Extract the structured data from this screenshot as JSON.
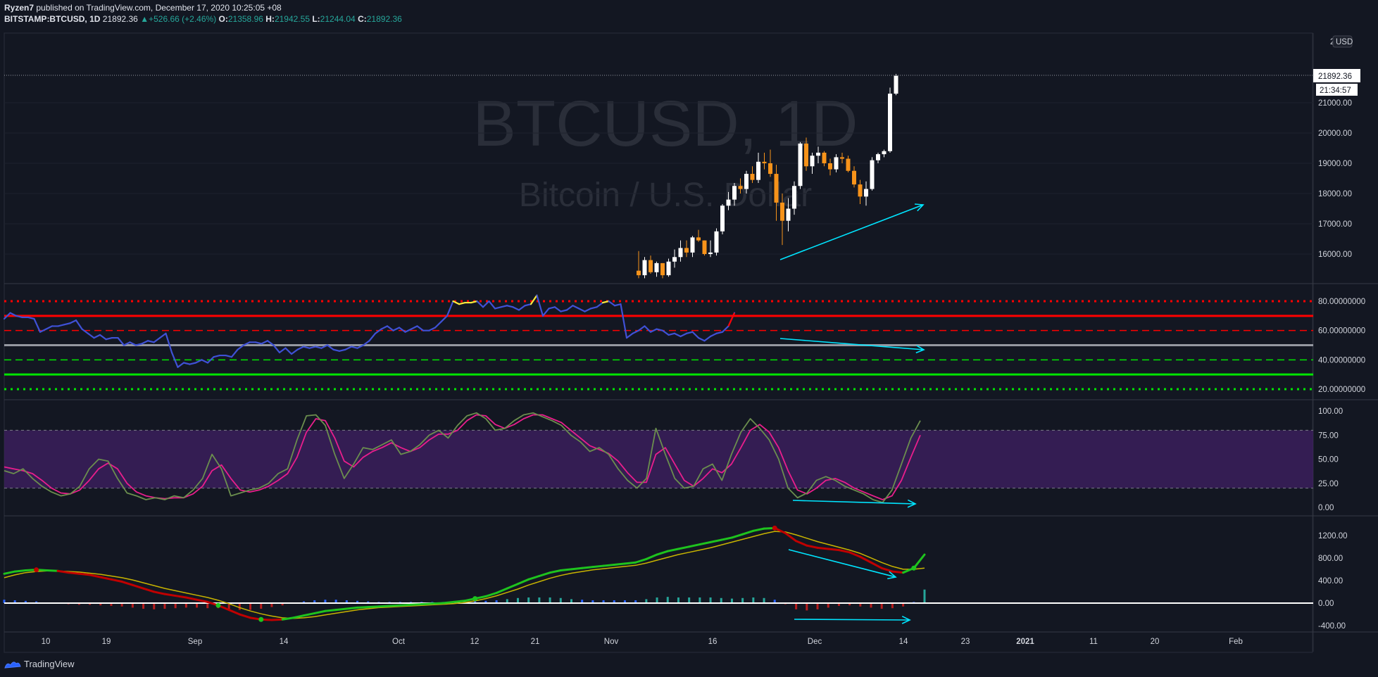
{
  "header": {
    "publisher": "Ryzen7",
    "published_text": "published on TradingView.com, December 17, 2020 10:25:05 +08",
    "symbol": "BITSTAMP:BTCUSD, 1D",
    "last": "21892.36",
    "arrow": "▲",
    "change": "+526.66 (+2.46%)",
    "o_label": "O:",
    "o": "21358.96",
    "h_label": "H:",
    "h": "21942.55",
    "l_label": "L:",
    "l": "21244.04",
    "c_label": "C:",
    "c": "21892.36"
  },
  "watermark": {
    "line1": "BTCUSD, 1D",
    "line2": "Bitcoin / U.S. Dollar"
  },
  "price_axis": {
    "currency": "USD",
    "top_partial": "230",
    "ticks": [
      "21000.00",
      "20000.00",
      "19000.00",
      "18000.00",
      "17000.00",
      "16000.00"
    ],
    "last_price_tag": "21892.36",
    "countdown_tag": "21:34:57"
  },
  "rsi_axis": {
    "ticks": [
      "80.00000000",
      "60.00000000",
      "40.00000000",
      "20.00000000"
    ]
  },
  "stoch_axis": {
    "ticks": [
      "100.00",
      "75.00",
      "50.00",
      "25.00",
      "0.00"
    ]
  },
  "macd_axis": {
    "ticks": [
      "1200.00",
      "800.00",
      "400.00",
      "0.00",
      "-400.00"
    ]
  },
  "time_axis": {
    "ticks": [
      "10",
      "19",
      "Sep",
      "14",
      "Oct",
      "12",
      "21",
      "Nov",
      "16",
      "Dec",
      "14",
      "23",
      "2021",
      "11",
      "20",
      "Feb"
    ]
  },
  "footer": {
    "brand": "TradingView"
  },
  "colors": {
    "bg": "#131722",
    "grid": "#1e222d",
    "up": "#ffffff",
    "down": "#f7931a",
    "rsi_line": "#3f51d6",
    "rsi_ob": "#ffeb3b",
    "red": "#ff0000",
    "green": "#00e600",
    "gray": "#9598a1",
    "stoch_k": "#6b8e4e",
    "stoch_d": "#e91e8c",
    "stoch_band": "#3b1f5c",
    "annot": "#00e5ff",
    "macd_green": "#1ec31e",
    "macd_red": "#c00000",
    "signal": "#c8b400",
    "hist_teal": "#26a69a",
    "hist_blue": "#2962ff",
    "hist_red": "#b71c1c"
  },
  "chart_data": [
    {
      "type": "candlestick",
      "title": "BTCUSD, 1D",
      "visible_candles_start": "Nov 4",
      "ohlc": [
        [
          15450,
          16100,
          15200,
          15300
        ],
        [
          15300,
          15900,
          15200,
          15800
        ],
        [
          15800,
          15950,
          15350,
          15400
        ],
        [
          15400,
          15750,
          15250,
          15700
        ],
        [
          15700,
          15700,
          15200,
          15300
        ],
        [
          15300,
          15850,
          15250,
          15750
        ],
        [
          15750,
          16150,
          15550,
          15900
        ],
        [
          15900,
          16450,
          15750,
          16200
        ],
        [
          16200,
          16450,
          15900,
          16050
        ],
        [
          16050,
          16600,
          15900,
          16550
        ],
        [
          16550,
          16800,
          16400,
          16450
        ],
        [
          16450,
          16450,
          15950,
          16000
        ],
        [
          16000,
          16450,
          15900,
          16050
        ],
        [
          16050,
          16850,
          15950,
          16750
        ],
        [
          16750,
          17650,
          16650,
          17600
        ],
        [
          17600,
          18050,
          17450,
          17800
        ],
        [
          17800,
          18350,
          17600,
          18250
        ],
        [
          18250,
          18500,
          18000,
          18150
        ],
        [
          18150,
          18750,
          18000,
          18650
        ],
        [
          18650,
          18900,
          18350,
          18450
        ],
        [
          18450,
          19350,
          18350,
          19050
        ],
        [
          19050,
          19350,
          18800,
          19000
        ],
        [
          19000,
          19450,
          18550,
          18650
        ],
        [
          18650,
          18950,
          17100,
          17700
        ],
        [
          17700,
          18000,
          16300,
          17100
        ],
        [
          17100,
          17850,
          16750,
          17500
        ],
        [
          17500,
          18400,
          17300,
          18250
        ],
        [
          18250,
          19700,
          18150,
          19650
        ],
        [
          19650,
          19850,
          18750,
          18900
        ],
        [
          18900,
          19350,
          18650,
          19250
        ],
        [
          19250,
          19550,
          19000,
          19350
        ],
        [
          19350,
          19400,
          18900,
          19000
        ],
        [
          19000,
          19150,
          18600,
          18800
        ],
        [
          18800,
          19300,
          18700,
          19200
        ],
        [
          19200,
          19350,
          19000,
          19150
        ],
        [
          19150,
          19250,
          18700,
          18750
        ],
        [
          18750,
          18900,
          18200,
          18300
        ],
        [
          18300,
          18450,
          17650,
          17900
        ],
        [
          17900,
          18400,
          17600,
          18150
        ],
        [
          18150,
          19200,
          18100,
          19100
        ],
        [
          19100,
          19350,
          19000,
          19300
        ],
        [
          19300,
          19450,
          19200,
          19400
        ],
        [
          19400,
          21500,
          19350,
          21300
        ],
        [
          21300,
          21950,
          21250,
          21892
        ]
      ]
    },
    {
      "type": "line",
      "name": "RSI",
      "ylim": [
        16,
        96
      ],
      "levels": [
        80,
        70,
        60,
        50,
        40,
        30,
        20
      ],
      "values": [
        68,
        72,
        70,
        69,
        69,
        68,
        59,
        61,
        63,
        63,
        64,
        65,
        67,
        61,
        58,
        55,
        57,
        54,
        55,
        55,
        50,
        52,
        50,
        51,
        53,
        52,
        55,
        58,
        45,
        35,
        38,
        37,
        38,
        40,
        38,
        42,
        43,
        43,
        42,
        47,
        50,
        52,
        52,
        51,
        53,
        50,
        45,
        48,
        44,
        47,
        49,
        48,
        49,
        48,
        50,
        47,
        46,
        47,
        49,
        48,
        50,
        53,
        58,
        61,
        63,
        60,
        62,
        59,
        61,
        63,
        60,
        60,
        62,
        66,
        70,
        80,
        78,
        79,
        79,
        80,
        76,
        80,
        75,
        76,
        77,
        76,
        74,
        77,
        78,
        84,
        70,
        75,
        76,
        73,
        74,
        77,
        75,
        73,
        75,
        76,
        79,
        80,
        77,
        78,
        55,
        58,
        60,
        63,
        59,
        61,
        60,
        57,
        58,
        56,
        58,
        59,
        55,
        53,
        56,
        58,
        59,
        63,
        72
      ]
    },
    {
      "type": "line",
      "name": "Stochastic",
      "ylim": [
        -10,
        110
      ],
      "band": [
        20,
        80
      ],
      "series": [
        {
          "name": "%K",
          "values": [
            38,
            35,
            40,
            30,
            22,
            16,
            12,
            14,
            22,
            40,
            50,
            48,
            30,
            15,
            12,
            8,
            10,
            8,
            12,
            10,
            18,
            30,
            55,
            40,
            12,
            15,
            18,
            20,
            25,
            35,
            40,
            70,
            95,
            96,
            85,
            55,
            30,
            45,
            62,
            60,
            65,
            70,
            55,
            58,
            65,
            75,
            80,
            72,
            85,
            95,
            98,
            92,
            80,
            82,
            90,
            96,
            98,
            94,
            90,
            85,
            75,
            68,
            58,
            62,
            55,
            40,
            28,
            20,
            30,
            82,
            55,
            30,
            20,
            22,
            40,
            45,
            28,
            55,
            78,
            92,
            82,
            70,
            50,
            20,
            10,
            15,
            28,
            32,
            28,
            22,
            18,
            14,
            8,
            5,
            18,
            45,
            72,
            90
          ]
        },
        {
          "name": "%D",
          "values": [
            42,
            40,
            38,
            35,
            28,
            20,
            15,
            14,
            18,
            28,
            40,
            46,
            40,
            25,
            16,
            12,
            10,
            9,
            10,
            10,
            14,
            22,
            38,
            44,
            30,
            18,
            16,
            18,
            22,
            28,
            35,
            52,
            78,
            92,
            90,
            72,
            48,
            42,
            52,
            58,
            62,
            67,
            62,
            58,
            62,
            70,
            76,
            76,
            80,
            90,
            96,
            95,
            86,
            82,
            86,
            92,
            96,
            96,
            92,
            88,
            80,
            72,
            64,
            60,
            56,
            48,
            36,
            26,
            26,
            55,
            62,
            45,
            28,
            22,
            30,
            40,
            36,
            45,
            62,
            80,
            86,
            78,
            62,
            38,
            18,
            14,
            20,
            28,
            30,
            26,
            20,
            16,
            12,
            8,
            12,
            28,
            52,
            75
          ]
        }
      ]
    },
    {
      "type": "line",
      "name": "MACD",
      "ylim": [
        -520,
        1420
      ],
      "series": [
        {
          "name": "MACD",
          "values": [
            520,
            560,
            580,
            590,
            580,
            570,
            540,
            520,
            500,
            460,
            420,
            380,
            320,
            260,
            200,
            160,
            130,
            100,
            60,
            20,
            -40,
            -120,
            -200,
            -260,
            -290,
            -300,
            -290,
            -260,
            -220,
            -180,
            -140,
            -120,
            -100,
            -80,
            -70,
            -60,
            -50,
            -40,
            -30,
            -20,
            -10,
            0,
            20,
            40,
            80,
            120,
            180,
            260,
            340,
            420,
            480,
            540,
            580,
            600,
            620,
            640,
            660,
            680,
            700,
            720,
            780,
            860,
            920,
            960,
            1000,
            1040,
            1080,
            1120,
            1160,
            1220,
            1280,
            1320,
            1330,
            1240,
            1100,
            1020,
            980,
            960,
            940,
            900,
            820,
            720,
            620,
            560,
            540,
            620,
            860
          ]
        },
        {
          "name": "Signal",
          "values": [
            450,
            500,
            540,
            560,
            570,
            570,
            560,
            550,
            530,
            510,
            480,
            450,
            410,
            360,
            310,
            260,
            220,
            180,
            140,
            100,
            50,
            -10,
            -80,
            -140,
            -190,
            -230,
            -260,
            -270,
            -260,
            -240,
            -210,
            -180,
            -150,
            -120,
            -100,
            -80,
            -70,
            -60,
            -50,
            -40,
            -30,
            -20,
            -10,
            10,
            40,
            80,
            130,
            190,
            250,
            320,
            380,
            440,
            490,
            530,
            560,
            590,
            610,
            630,
            650,
            670,
            710,
            760,
            810,
            860,
            900,
            940,
            980,
            1030,
            1080,
            1130,
            1180,
            1230,
            1270,
            1260,
            1210,
            1150,
            1090,
            1040,
            990,
            940,
            880,
            800,
            720,
            650,
            600,
            600,
            620
          ]
        },
        {
          "name": "Histogram",
          "values": [
            60,
            50,
            40,
            30,
            10,
            0,
            -20,
            -30,
            -30,
            -40,
            -50,
            -60,
            -80,
            -100,
            -110,
            -100,
            -90,
            -80,
            -80,
            -90,
            -90,
            -110,
            -120,
            -120,
            -100,
            -70,
            -40,
            -10,
            30,
            50,
            60,
            60,
            50,
            40,
            30,
            20,
            20,
            20,
            20,
            20,
            20,
            20,
            30,
            30,
            40,
            40,
            50,
            70,
            90,
            100,
            100,
            100,
            90,
            70,
            60,
            50,
            50,
            50,
            50,
            50,
            70,
            100,
            110,
            100,
            100,
            100,
            100,
            90,
            80,
            90,
            100,
            90,
            60,
            -20,
            -110,
            -130,
            -110,
            -80,
            -50,
            -40,
            -60,
            -80,
            -100,
            -90,
            -60,
            20,
            240
          ]
        }
      ]
    }
  ]
}
